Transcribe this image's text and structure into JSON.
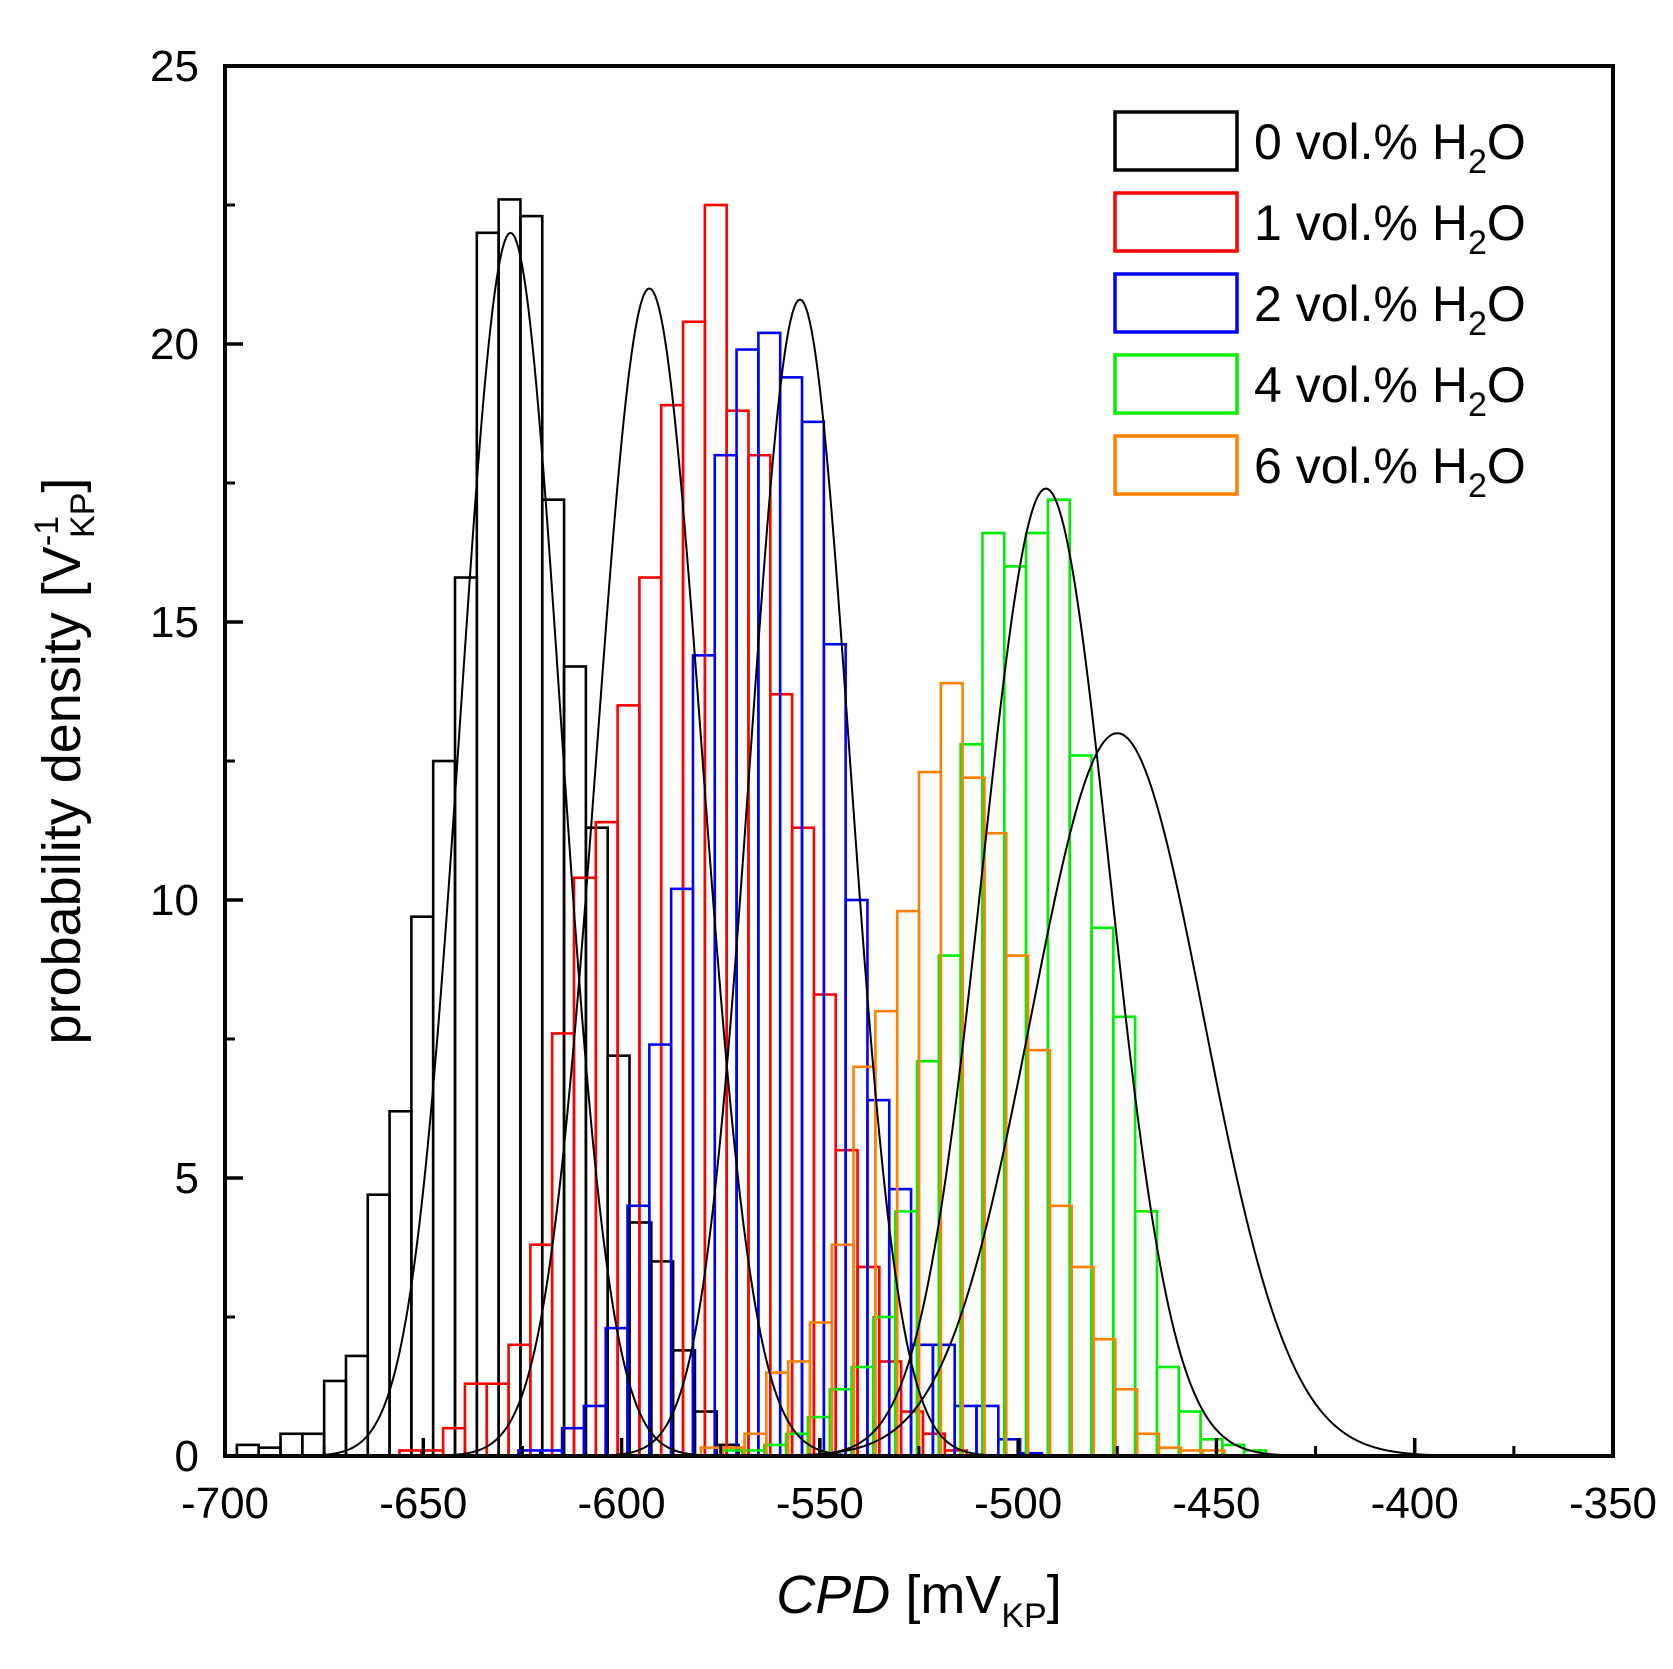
{
  "chart_data": {
    "type": "histogram",
    "xlabel": {
      "italic": "CPD",
      "unit_prefix": " [mV",
      "unit_sub": "KP",
      "unit_suffix": "]"
    },
    "ylabel": {
      "main": "probability density [V",
      "sup": "-1",
      "sub": "KP",
      "suffix": "]"
    },
    "xlim": [
      -700,
      -350
    ],
    "ylim": [
      0,
      25
    ],
    "x_major_ticks": [
      -700,
      -650,
      -600,
      -550,
      -500,
      -450,
      -400,
      -350
    ],
    "x_tick_labels": [
      "-700",
      "-650",
      "-600",
      "-550",
      "-500",
      "-450",
      "-400",
      "-350"
    ],
    "y_major_ticks": [
      0,
      5,
      10,
      15,
      20,
      25
    ],
    "y_tick_labels": [
      "0",
      "5",
      "10",
      "15",
      "20",
      "25"
    ],
    "bin_width": 5.5,
    "legend_position": "top-right",
    "fit_color": "#000000",
    "series": [
      {
        "name": "0 vol.% H2O",
        "label_main": "0 vol.% H",
        "label_sub": "2",
        "label_tail": "O",
        "color": "#000000",
        "bin_start": -697,
        "values": [
          0.2,
          0.15,
          0.4,
          0.4,
          1.35,
          1.8,
          4.7,
          6.2,
          9.7,
          12.5,
          15.8,
          22.0,
          22.6,
          22.3,
          17.2,
          14.2,
          11.3,
          7.2,
          4.2,
          3.5,
          1.9,
          0.8,
          0.2
        ],
        "fit": {
          "mean": -628,
          "sd": 12.6,
          "peak": 22.0
        }
      },
      {
        "name": "1 vol.% H2O",
        "label_main": "1 vol.% H",
        "label_sub": "2",
        "label_tail": "O",
        "color": "#ff0000",
        "bin_start": -656,
        "values": [
          0.1,
          0.1,
          0.5,
          1.3,
          1.3,
          2.0,
          3.8,
          7.6,
          10.4,
          11.4,
          13.5,
          15.8,
          18.9,
          20.4,
          22.5,
          18.8,
          18.0,
          13.7,
          11.3,
          8.3,
          5.5,
          3.4,
          1.7,
          0.8,
          0.4,
          0.1
        ],
        "fit": {
          "mean": -593,
          "sd": 13.2,
          "peak": 21.0
        }
      },
      {
        "name": "2 vol.% H2O",
        "label_main": "2 vol.% H",
        "label_sub": "2",
        "label_tail": "O",
        "color": "#0000ff",
        "bin_start": -626,
        "values": [
          0.1,
          0.1,
          0.5,
          0.9,
          2.3,
          4.5,
          7.4,
          10.2,
          14.4,
          18.0,
          19.9,
          20.2,
          19.4,
          18.6,
          14.6,
          10.0,
          6.4,
          4.8,
          2.0,
          2.0,
          0.9,
          0.9,
          0.3,
          0.05
        ],
        "fit": {
          "mean": -555,
          "sd": 12.5,
          "peak": 20.8
        }
      },
      {
        "name": "4 vol.% H2O",
        "label_main": "4 vol.% H",
        "label_sub": "2",
        "label_tail": "O",
        "color": "#00ee00",
        "bin_start": -575,
        "values": [
          0.1,
          0.1,
          0.2,
          0.4,
          0.7,
          1.2,
          1.6,
          2.5,
          4.4,
          7.1,
          9.0,
          12.8,
          16.6,
          16.0,
          16.6,
          17.2,
          12.6,
          9.5,
          7.9,
          4.4,
          1.6,
          0.8,
          0.3,
          0.2,
          0.1
        ],
        "fit": {
          "mean": -493,
          "sd": 16.0,
          "peak": 17.4
        }
      },
      {
        "name": "6 vol.% H2O",
        "label_main": "6 vol.% H",
        "label_sub": "2",
        "label_tail": "O",
        "color": "#ff8000",
        "bin_start": -580,
        "values": [
          0.15,
          0.15,
          0.4,
          1.5,
          1.7,
          2.4,
          3.8,
          7.0,
          8.0,
          9.8,
          12.3,
          13.9,
          12.2,
          11.2,
          9.0,
          7.3,
          4.5,
          3.4,
          2.1,
          1.2,
          0.4,
          0.15,
          0.1,
          0.1
        ],
        "fit": {
          "mean": -475,
          "sd": 21.8,
          "peak": 13.0
        }
      }
    ]
  }
}
